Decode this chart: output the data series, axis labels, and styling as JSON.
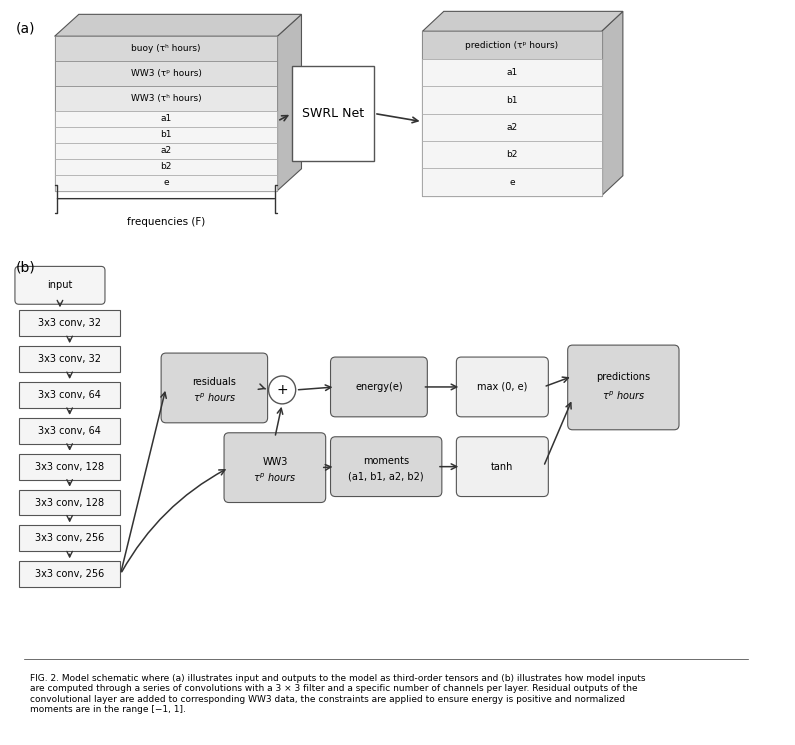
{
  "fig_width": 7.95,
  "fig_height": 7.45,
  "bg_color": "#ffffff",
  "panel_a_label": "(a)",
  "panel_b_label": "(b)",
  "tensor_input_labels": [
    "buoy (τʰ hours)",
    "WW3 (τᵖ hours)",
    "WW3 (τʰ hours)",
    "a1",
    "b1",
    "a2",
    "b2",
    "e"
  ],
  "tensor_output_labels": [
    "prediction (τᵖ hours)",
    "a1",
    "b1",
    "a2",
    "b2",
    "e"
  ],
  "swrl_label": "SWRL Net",
  "freq_label": "frequencies (F)",
  "conv_layers": [
    "input",
    "3x3 conv, 32",
    "3x3 conv, 32",
    "3x3 conv, 64",
    "3x3 conv, 64",
    "3x3 conv, 128",
    "3x3 conv, 128",
    "3x3 conv, 256",
    "3x3 conv, 256"
  ],
  "box_labels": [
    "residuals\nτᵖ hours",
    "WW3\nτᵖ hours",
    "energy(e)",
    "moments\n(a1, b1, a2, b2)",
    "max (0, e)",
    "tanh",
    "predictions\nτᵖ hours"
  ],
  "plus_circle": "+",
  "caption": "FIG. 2. Model schematic where (a) illustrates input and outputs to the model as third-order tensors and (b) illustrates how model inputs\nare computed through a series of convolutions with a 3 × 3 filter and a specific number of channels per layer. Residual outputs of the\nconvolutional layer are added to corresponding WW3 data, the constraints are applied to ensure energy is positive and normalized\nmoments are in the range [−1, 1].",
  "box_fill": "#e8e8e8",
  "box_edge": "#555555",
  "tensor_fill": "#d8d8d8",
  "tensor_top_fill": "#eeeeee"
}
